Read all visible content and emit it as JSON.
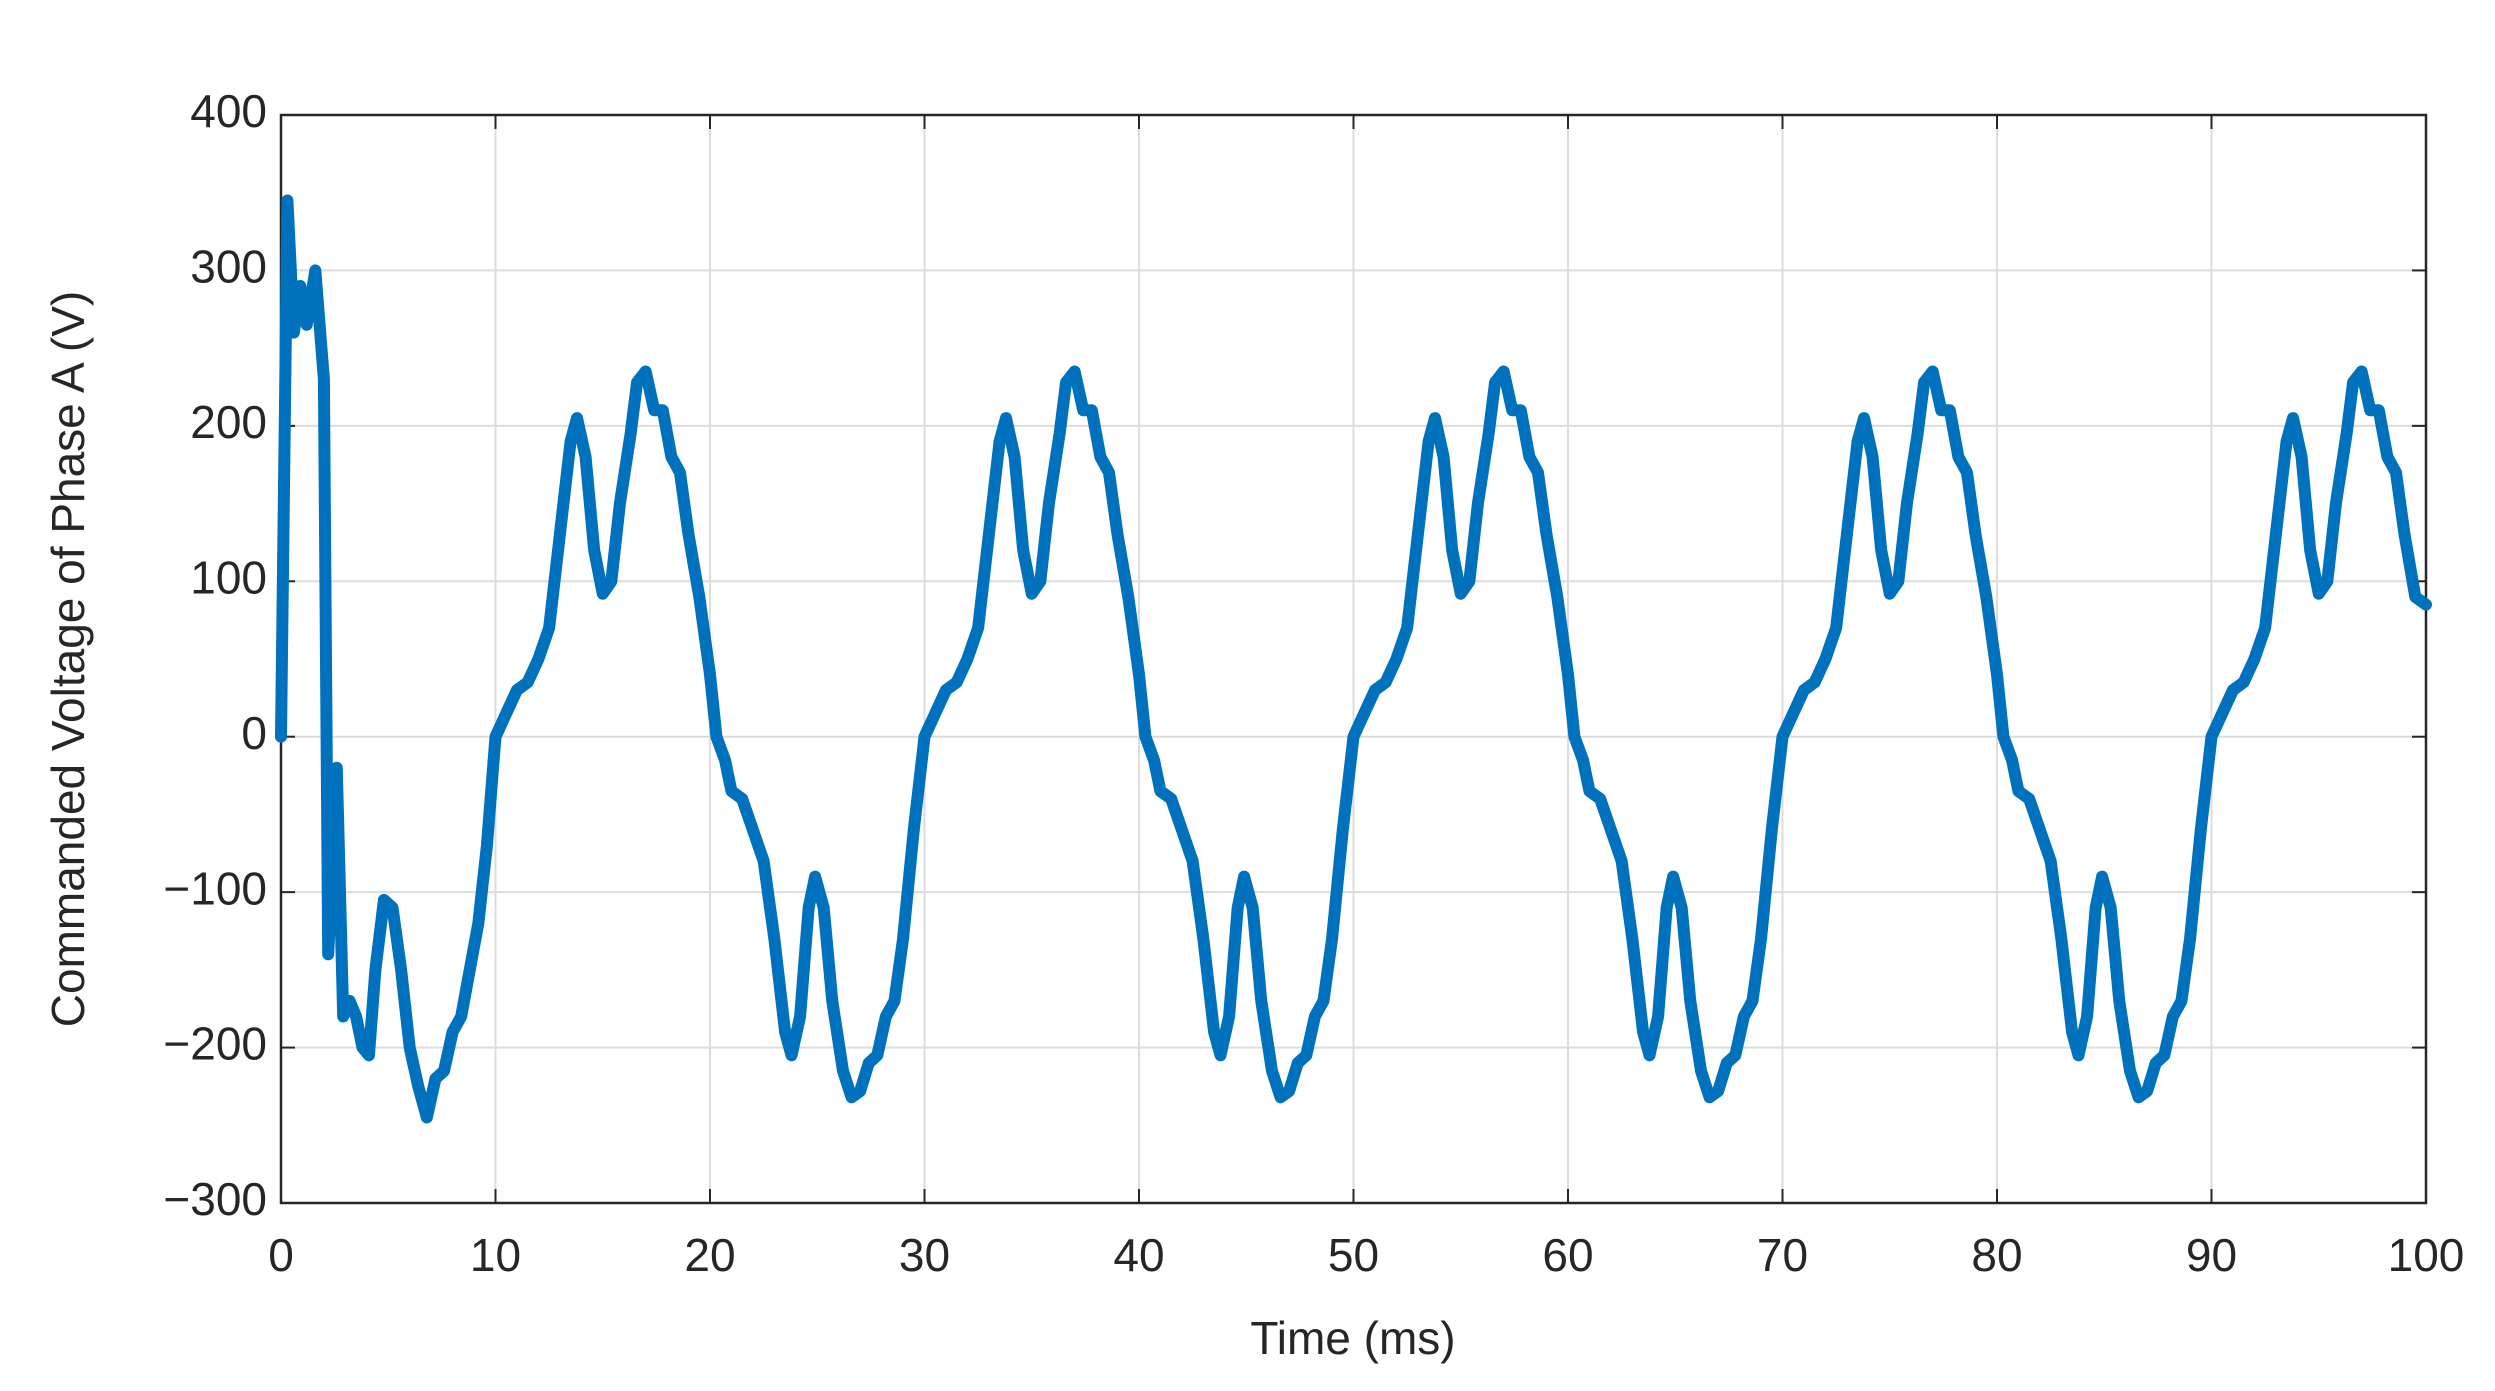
{
  "chart_data": {
    "type": "line",
    "xlabel": "Time (ms)",
    "ylabel": "Commanded Voltage of Phase A (V)",
    "xlim": [
      0,
      100
    ],
    "ylim": [
      -300,
      400
    ],
    "xticks": [
      0,
      10,
      20,
      30,
      40,
      50,
      60,
      70,
      80,
      90,
      100
    ],
    "yticks": [
      {
        "value": -300,
        "label": "−300"
      },
      {
        "value": -200,
        "label": "−200"
      },
      {
        "value": -100,
        "label": "−100"
      },
      0,
      100,
      200,
      300,
      400
    ],
    "grid": true,
    "series": [
      {
        "color": "#0072bd",
        "x": [
          0,
          0.3,
          0.6,
          0.9,
          1.2,
          1.6,
          2.0,
          2.2,
          2.6,
          2.9,
          3.2,
          3.5,
          3.8,
          4.1,
          4.4,
          4.8,
          5.2,
          5.6,
          6.0,
          6.4,
          6.8,
          7.2,
          7.6,
          8.0,
          8.4,
          8.8,
          9.2,
          9.6,
          10,
          10.5,
          11,
          11.5,
          12,
          12.5,
          13,
          13.5,
          13.8,
          14.2,
          14.6,
          15,
          15.4,
          15.8,
          16.3,
          16.6,
          17,
          17.4,
          17.8,
          18.2,
          18.6,
          19,
          19.5,
          20,
          20.3,
          20.7,
          21,
          21.5,
          22,
          22.5,
          23,
          23.5,
          23.8,
          24.2,
          24.6,
          24.9,
          25.3,
          25.7,
          26.2,
          26.6,
          27,
          27.4,
          27.8,
          28.2,
          28.6,
          29,
          29.5,
          30,
          30.5,
          31,
          31.5,
          32,
          32.5,
          33,
          33.5,
          33.8,
          34.2,
          34.6,
          35,
          35.4,
          35.8,
          36.3,
          36.6,
          37,
          37.4,
          37.8,
          38.2,
          38.6,
          39,
          39.5,
          40,
          40.3,
          40.7,
          41,
          41.5,
          42,
          42.5,
          43,
          43.5,
          43.8,
          44.2,
          44.6,
          44.9,
          45.3,
          45.7,
          46.2,
          46.6,
          47,
          47.4,
          47.8,
          48.2,
          48.6,
          49,
          49.5,
          50,
          50.5,
          51,
          51.5,
          52,
          52.5,
          53,
          53.5,
          53.8,
          54.2,
          54.6,
          55,
          55.4,
          55.8,
          56.3,
          56.6,
          57,
          57.4,
          57.8,
          58.2,
          58.6,
          59,
          59.5,
          60,
          60.3,
          60.7,
          61,
          61.5,
          62,
          62.5,
          63,
          63.5,
          63.8,
          64.2,
          64.6,
          64.9,
          65.3,
          65.7,
          66.2,
          66.6,
          67,
          67.4,
          67.8,
          68.2,
          68.6,
          69,
          69.5,
          70,
          70.5,
          71,
          71.5,
          72,
          72.5,
          73,
          73.5,
          73.8,
          74.2,
          74.6,
          75,
          75.4,
          75.8,
          76.3,
          76.6,
          77,
          77.4,
          77.8,
          78.2,
          78.6,
          79,
          79.5,
          80,
          80.3,
          80.7,
          81,
          81.5,
          82,
          82.5,
          83,
          83.5,
          83.8,
          84.2,
          84.6,
          84.9,
          85.3,
          85.7,
          86.2,
          86.6,
          87,
          87.4,
          87.8,
          88.2,
          88.6,
          89,
          89.5,
          90,
          90.5,
          91,
          91.5,
          92,
          92.5,
          93,
          93.5,
          93.8,
          94.2,
          94.6,
          95,
          95.4,
          95.8,
          96.3,
          96.6,
          97,
          97.4,
          97.8,
          98.2,
          98.6,
          99,
          99.5,
          100
        ],
        "values": [
          0,
          345,
          260,
          290,
          265,
          300,
          230,
          -140,
          -20,
          -180,
          -170,
          -180,
          -200,
          -205,
          -150,
          -105,
          -110,
          -150,
          -200,
          -225,
          -245,
          -220,
          -215,
          -190,
          -180,
          -150,
          -120,
          -70,
          0,
          15,
          30,
          35,
          50,
          70,
          130,
          190,
          205,
          180,
          120,
          92,
          100,
          150,
          195,
          228,
          235,
          210,
          210,
          180,
          170,
          130,
          90,
          40,
          0,
          -15,
          -35,
          -40,
          -60,
          -80,
          -130,
          -190,
          -205,
          -180,
          -110,
          -90,
          -110,
          -170,
          -215,
          -232,
          -228,
          -210,
          -205,
          -180,
          -170,
          -130,
          -60,
          0,
          15,
          30,
          35,
          50,
          70,
          130,
          190,
          205,
          180,
          120,
          92,
          100,
          150,
          195,
          228,
          235,
          210,
          210,
          180,
          170,
          130,
          90,
          40,
          0,
          -15,
          -35,
          -40,
          -60,
          -80,
          -130,
          -190,
          -205,
          -180,
          -110,
          -90,
          -110,
          -170,
          -215,
          -232,
          -228,
          -210,
          -205,
          -180,
          -170,
          -130,
          -60,
          0,
          15,
          30,
          35,
          50,
          70,
          130,
          190,
          205,
          180,
          120,
          92,
          100,
          150,
          195,
          228,
          235,
          210,
          210,
          180,
          170,
          130,
          90,
          40,
          0,
          -15,
          -35,
          -40,
          -60,
          -80,
          -130,
          -190,
          -205,
          -180,
          -110,
          -90,
          -110,
          -170,
          -215,
          -232,
          -228,
          -210,
          -205,
          -180,
          -170,
          -130,
          -60,
          0,
          15,
          30,
          35,
          50,
          70,
          130,
          190,
          205,
          180,
          120,
          92,
          100,
          150,
          195,
          228,
          235,
          210,
          210,
          180,
          170,
          130,
          90,
          40,
          0,
          -15,
          -35,
          -40,
          -60,
          -80,
          -130,
          -190,
          -205,
          -180,
          -110,
          -90,
          -110,
          -170,
          -215,
          -232,
          -228,
          -210,
          -205,
          -180,
          -170,
          -130,
          -60,
          0,
          15,
          30,
          35,
          50,
          70,
          130,
          190,
          205,
          180,
          120,
          92,
          100,
          150,
          195,
          228,
          235,
          210,
          210,
          180,
          170,
          130,
          90,
          85
        ]
      }
    ]
  }
}
